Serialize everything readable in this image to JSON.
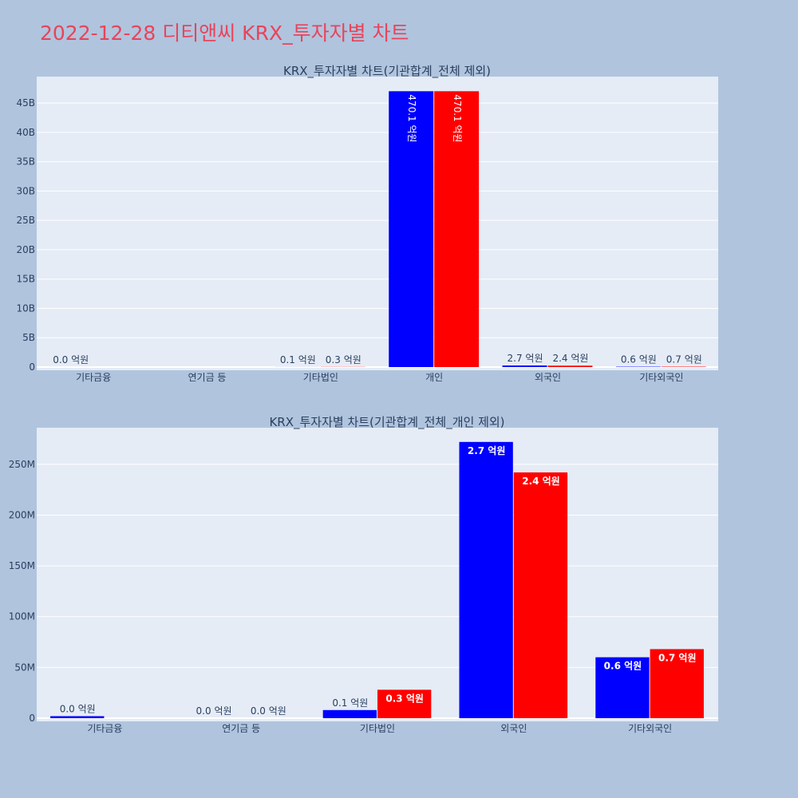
{
  "title": "2022-12-28 디티앤씨 KRX_투자자별 차트",
  "colors": {
    "buy": "#0000ff",
    "sell": "#ff0000",
    "plot_bg": "#e5ecf6",
    "grid": "#ffffff"
  },
  "chart_data": [
    {
      "type": "bar",
      "title": "KRX_투자자별 차트(기관합계_전체 제외)",
      "categories": [
        "기타금융",
        "연기금 등",
        "기타법인",
        "개인",
        "외국인",
        "기타외국인"
      ],
      "series": [
        {
          "values": [
            2000000,
            0,
            8000000,
            47010000000,
            272000000,
            60000000
          ],
          "labels": [
            "0.0 억원",
            "",
            "0.1 억원",
            "470.1 억원",
            "2.7 억원",
            "0.6 억원"
          ]
        },
        {
          "values": [
            0,
            0,
            28000000,
            47010000000,
            242000000,
            68000000
          ],
          "labels": [
            "",
            "",
            "0.3 억원",
            "470.1 억원",
            "2.4 억원",
            "0.7 억원"
          ]
        }
      ],
      "ylim": [
        0,
        49500000000
      ],
      "yticks": [
        {
          "v": 0,
          "t": "0"
        },
        {
          "v": 5000000000,
          "t": "5B"
        },
        {
          "v": 10000000000,
          "t": "10B"
        },
        {
          "v": 15000000000,
          "t": "15B"
        },
        {
          "v": 20000000000,
          "t": "20B"
        },
        {
          "v": 25000000000,
          "t": "25B"
        },
        {
          "v": 30000000000,
          "t": "30B"
        },
        {
          "v": 35000000000,
          "t": "35B"
        },
        {
          "v": 40000000000,
          "t": "40B"
        },
        {
          "v": 45000000000,
          "t": "45B"
        }
      ],
      "grid": true
    },
    {
      "type": "bar",
      "title": "KRX_투자자별 차트(기관합계_전체_개인 제외)",
      "categories": [
        "기타금융",
        "연기금 등",
        "기타법인",
        "외국인",
        "기타외국인"
      ],
      "series": [
        {
          "values": [
            2000000,
            0,
            8000000,
            272000000,
            60000000
          ],
          "labels": [
            "0.0 억원",
            "0.0 억원",
            "0.1 억원",
            "2.7 억원",
            "0.6 억원"
          ]
        },
        {
          "values": [
            0,
            0,
            28000000,
            242000000,
            68000000
          ],
          "labels": [
            "",
            "0.0 억원",
            "0.3 억원",
            "2.4 억원",
            "0.7 억원"
          ]
        }
      ],
      "ylim": [
        0,
        286000000
      ],
      "yticks": [
        {
          "v": 0,
          "t": "0"
        },
        {
          "v": 50000000,
          "t": "50M"
        },
        {
          "v": 100000000,
          "t": "100M"
        },
        {
          "v": 150000000,
          "t": "150M"
        },
        {
          "v": 200000000,
          "t": "200M"
        },
        {
          "v": 250000000,
          "t": "250M"
        }
      ],
      "grid": true
    }
  ]
}
